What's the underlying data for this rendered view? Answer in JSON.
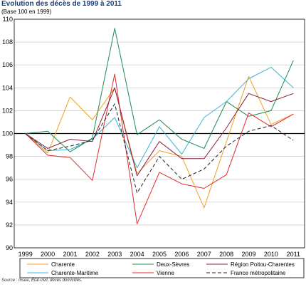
{
  "title": "Évolution des décès de 1999 à 2011",
  "subtitle": "(Base 100 en 1999)",
  "source": "Source : Insee, État-civil, décès domiciliés.",
  "chart_data": {
    "type": "line",
    "x": [
      "1999",
      "2000",
      "2001",
      "2002",
      "2003",
      "2004",
      "2005",
      "2006",
      "2007",
      "2008",
      "2009",
      "2010",
      "2011"
    ],
    "ylim": [
      90,
      110
    ],
    "yticks": [
      90,
      92,
      94,
      96,
      98,
      100,
      102,
      104,
      106,
      108,
      110
    ],
    "baseline": 100,
    "grid": "horizontal",
    "legend_position": "bottom",
    "series": [
      {
        "name": "Charente",
        "color": "#f0a020",
        "dash": "",
        "values": [
          100,
          98.3,
          103.2,
          101.2,
          104.0,
          96.5,
          98.5,
          98.0,
          93.5,
          99.3,
          105.0,
          100.8,
          101.7
        ]
      },
      {
        "name": "Charente-Maritime",
        "color": "#3bb4d8",
        "dash": "",
        "values": [
          100,
          98.5,
          98.6,
          99.5,
          101.4,
          97.0,
          100.6,
          98.2,
          101.4,
          102.8,
          104.8,
          105.8,
          104.0
        ]
      },
      {
        "name": "Deux-Sèvres",
        "color": "#1e8a52",
        "dash": "",
        "values": [
          100,
          100.2,
          98.4,
          99.6,
          109.2,
          99.9,
          101.2,
          99.5,
          98.7,
          102.8,
          101.5,
          102.0,
          106.4
        ]
      },
      {
        "name": "Vienne",
        "color": "#e02a2a",
        "dash": "",
        "values": [
          100,
          98.1,
          97.9,
          95.9,
          105.2,
          92.1,
          96.6,
          95.6,
          95.2,
          96.4,
          101.8,
          100.6,
          101.7
        ]
      },
      {
        "name": "Région Poitou-Charentes",
        "color": "#8a1e3c",
        "dash": "",
        "values": [
          100,
          98.7,
          99.5,
          99.3,
          104.0,
          96.3,
          99.3,
          97.8,
          97.8,
          100.5,
          103.5,
          102.8,
          103.5
        ]
      },
      {
        "name": "France métropolitaine",
        "color": "#222222",
        "dash": "5,3",
        "values": [
          100,
          98.5,
          98.9,
          99.4,
          102.6,
          94.8,
          98.0,
          96.0,
          96.9,
          98.9,
          100.2,
          100.7,
          99.4
        ]
      }
    ]
  }
}
